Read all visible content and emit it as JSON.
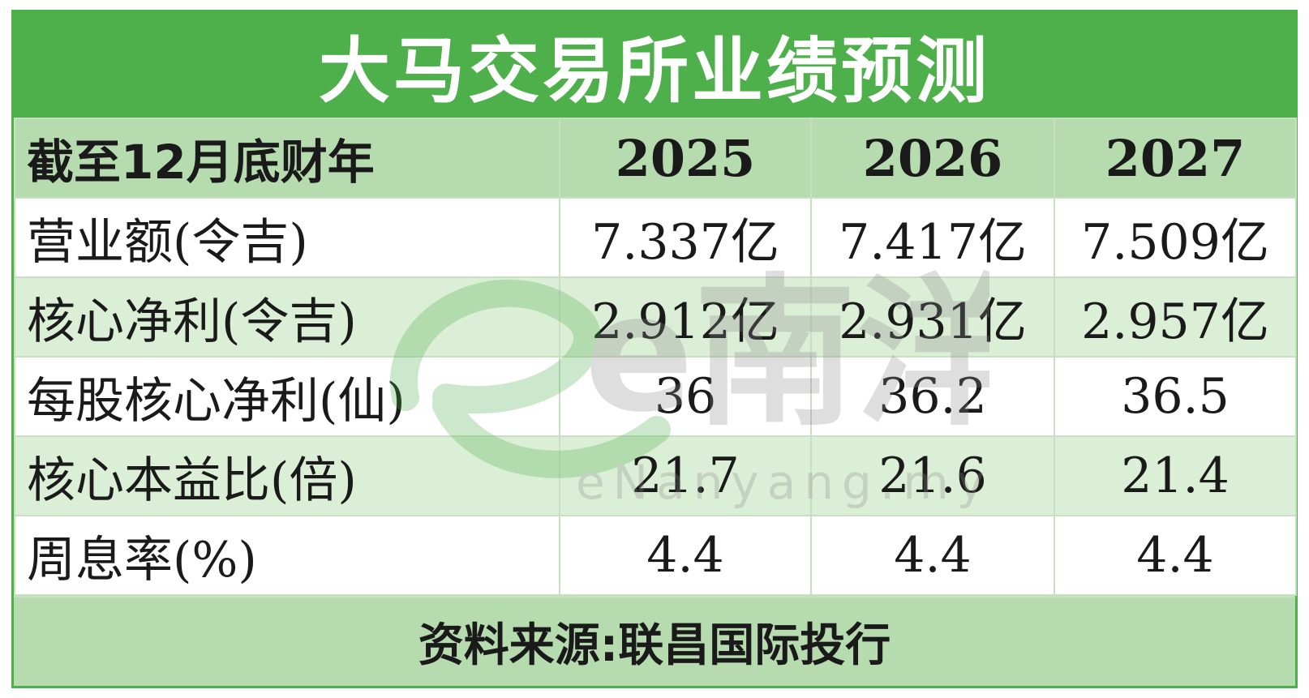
{
  "title": "大马交易所业绩预测",
  "header": {
    "label": "截至12月底财年",
    "years": [
      "2025",
      "2026",
      "2027"
    ]
  },
  "rows": [
    {
      "label": "营业额(令吉)",
      "values": [
        "7.337亿",
        "7.417亿",
        "7.509亿"
      ]
    },
    {
      "label": "核心净利(令吉)",
      "values": [
        "2.912亿",
        "2.931亿",
        "2.957亿"
      ]
    },
    {
      "label": "每股核心净利(仙)",
      "values": [
        "36",
        "36.2",
        "36.5"
      ]
    },
    {
      "label": "核心本益比(倍)",
      "values": [
        "21.7",
        "21.6",
        "21.4"
      ]
    },
    {
      "label": "周息率(%)",
      "values": [
        "4.4",
        "4.4",
        "4.4"
      ]
    }
  ],
  "footer": "资料来源:联昌国际投行",
  "watermark": {
    "mark": "e南洋",
    "url": "eNanyang.my"
  },
  "colors": {
    "title_bg": "#4db04a",
    "header_bg": "#b5dbae",
    "band_bg": "#dbeed6"
  }
}
